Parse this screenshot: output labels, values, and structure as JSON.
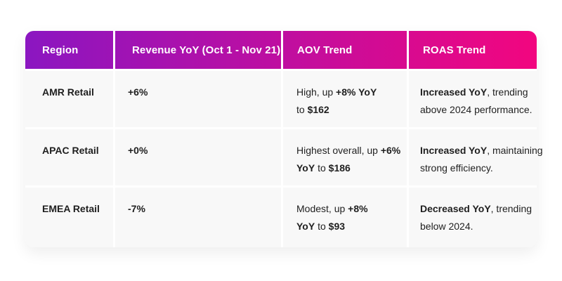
{
  "page": {
    "background": "#ffffff"
  },
  "table": {
    "accent_gradient": {
      "from": "#8b16c1",
      "to": "#f2067f"
    },
    "row_background": "#f8f8f8",
    "text_color": "#1f1f1f",
    "header_text_color": "#ffffff",
    "columns": [
      "Region",
      "Revenue YoY (Oct 1 - Nov 21)",
      "AOV Trend",
      "ROAS Trend"
    ],
    "rows": [
      {
        "region": "AMR Retail",
        "revenue_yoy": "+6%",
        "aov_trend": [
          [
            {
              "t": "High, up ",
              "b": false
            },
            {
              "t": "+8% YoY",
              "b": true
            }
          ],
          [
            {
              "t": "to ",
              "b": false
            },
            {
              "t": "$162",
              "b": true
            }
          ]
        ],
        "roas_trend": [
          [
            {
              "t": "Increased YoY",
              "b": true
            },
            {
              "t": ", trending",
              "b": false
            }
          ],
          [
            {
              "t": "above 2024 performance.",
              "b": false
            }
          ]
        ]
      },
      {
        "region": "APAC Retail",
        "revenue_yoy": "+0%",
        "aov_trend": [
          [
            {
              "t": "Highest overall, up ",
              "b": false
            },
            {
              "t": "+6%",
              "b": true
            }
          ],
          [
            {
              "t": "YoY",
              "b": true
            },
            {
              "t": " to ",
              "b": false
            },
            {
              "t": "$186",
              "b": true
            }
          ]
        ],
        "roas_trend": [
          [
            {
              "t": "Increased YoY",
              "b": true
            },
            {
              "t": ", maintaining",
              "b": false
            }
          ],
          [
            {
              "t": "strong efficiency.",
              "b": false
            }
          ]
        ]
      },
      {
        "region": "EMEA Retail",
        "revenue_yoy": "-7%",
        "aov_trend": [
          [
            {
              "t": "Modest, up ",
              "b": false
            },
            {
              "t": "+8%",
              "b": true
            }
          ],
          [
            {
              "t": "YoY",
              "b": true
            },
            {
              "t": " to ",
              "b": false
            },
            {
              "t": "$93",
              "b": true
            }
          ]
        ],
        "roas_trend": [
          [
            {
              "t": "Decreased YoY",
              "b": true
            },
            {
              "t": ", trending",
              "b": false
            }
          ],
          [
            {
              "t": "below 2024.",
              "b": false
            }
          ]
        ]
      }
    ]
  },
  "chart_data": {
    "type": "table",
    "title": "",
    "columns": [
      "Region",
      "Revenue YoY (Oct 1 - Nov 21)",
      "AOV Trend",
      "ROAS Trend"
    ],
    "rows": [
      [
        "AMR Retail",
        "+6%",
        "High, up +8% YoY to $162",
        "Increased YoY, trending above 2024 performance."
      ],
      [
        "APAC Retail",
        "+0%",
        "Highest overall, up +6% YoY to $186",
        "Increased YoY, maintaining strong efficiency."
      ],
      [
        "EMEA Retail",
        "-7%",
        "Modest, up +8% YoY to $93",
        "Decreased YoY, trending below 2024."
      ]
    ]
  }
}
